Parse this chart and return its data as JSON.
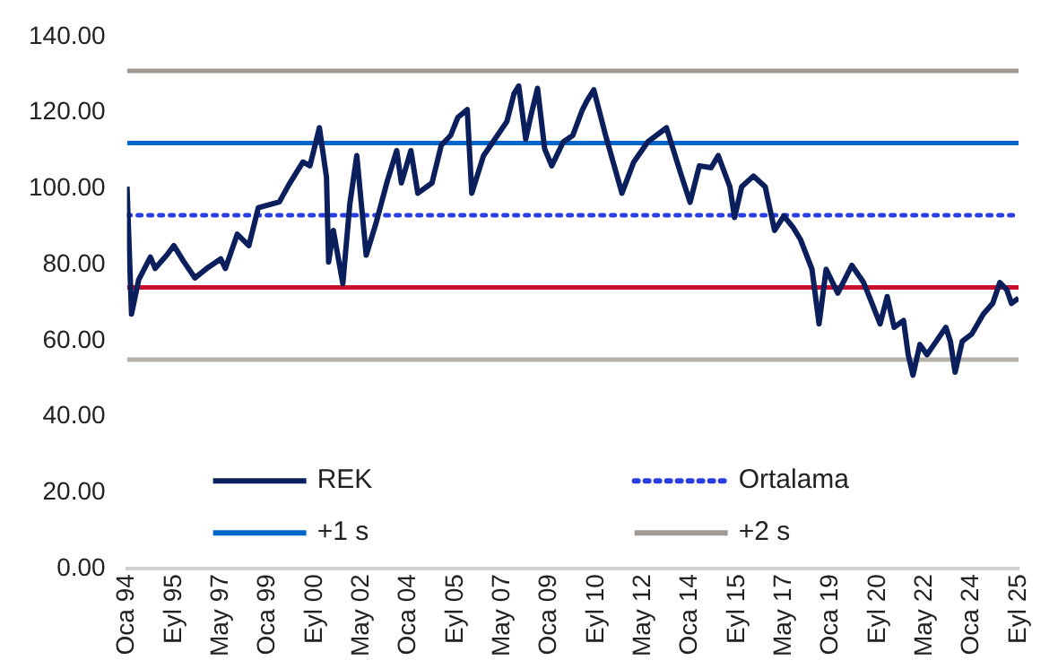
{
  "chart_data": {
    "type": "line",
    "xlim": [
      "1994-01",
      "2025-09"
    ],
    "xticks": [
      {
        "value": "1994-01",
        "label": "Oca 94"
      },
      {
        "value": "1995-09",
        "label": "Eyl 95"
      },
      {
        "value": "1997-05",
        "label": "May 97"
      },
      {
        "value": "1999-01",
        "label": "Oca 99"
      },
      {
        "value": "2000-09",
        "label": "Eyl 00"
      },
      {
        "value": "2002-05",
        "label": "May 02"
      },
      {
        "value": "2004-01",
        "label": "Oca 04"
      },
      {
        "value": "2005-09",
        "label": "Eyl 05"
      },
      {
        "value": "2007-05",
        "label": "May 07"
      },
      {
        "value": "2009-01",
        "label": "Oca 09"
      },
      {
        "value": "2010-09",
        "label": "Eyl 10"
      },
      {
        "value": "2012-05",
        "label": "May 12"
      },
      {
        "value": "2014-01",
        "label": "Oca 14"
      },
      {
        "value": "2015-09",
        "label": "Eyl 15"
      },
      {
        "value": "2017-05",
        "label": "May 17"
      },
      {
        "value": "2019-01",
        "label": "Oca 19"
      },
      {
        "value": "2020-09",
        "label": "Eyl 20"
      },
      {
        "value": "2022-05",
        "label": "May 22"
      },
      {
        "value": "2024-01",
        "label": "Oca 24"
      },
      {
        "value": "2025-09",
        "label": "Eyl 25"
      }
    ],
    "ylim": [
      0,
      140
    ],
    "yticks": [
      {
        "value": 0,
        "label": "0.00"
      },
      {
        "value": 20,
        "label": "20.00"
      },
      {
        "value": 40,
        "label": "40.00"
      },
      {
        "value": 60,
        "label": "60.00"
      },
      {
        "value": 80,
        "label": "80.00"
      },
      {
        "value": 100,
        "label": "100.00"
      },
      {
        "value": 120,
        "label": "120.00"
      },
      {
        "value": 140,
        "label": "140.00"
      }
    ],
    "grid": false,
    "legend": "bottom left",
    "marker": "none",
    "series": [
      {
        "name": "REK",
        "color": "#0a1f5c",
        "line_style": "solid",
        "x": [
          "1994-01",
          "1994-03",
          "1994-06",
          "1994-11",
          "1995-01",
          "1995-06",
          "1995-09",
          "1996-01",
          "1996-06",
          "1996-11",
          "1997-05",
          "1997-07",
          "1997-12",
          "1998-05",
          "1998-09",
          "1999-06",
          "1999-10",
          "2000-04",
          "2000-07",
          "2000-11",
          "2001-02",
          "2001-03",
          "2001-05",
          "2001-09",
          "2001-12",
          "2002-03",
          "2002-07",
          "2002-11",
          "2003-04",
          "2003-08",
          "2003-10",
          "2004-02",
          "2004-05",
          "2004-11",
          "2005-03",
          "2005-07",
          "2005-10",
          "2006-02",
          "2006-04",
          "2006-09",
          "2007-01",
          "2007-07",
          "2007-10",
          "2007-12",
          "2008-03",
          "2008-05",
          "2008-08",
          "2008-11",
          "2009-02",
          "2009-07",
          "2009-11",
          "2010-03",
          "2010-05",
          "2010-08",
          "2011-01",
          "2011-08",
          "2012-01",
          "2012-07",
          "2013-03",
          "2013-09",
          "2014-01",
          "2014-05",
          "2014-10",
          "2015-01",
          "2015-06",
          "2015-08",
          "2015-11",
          "2016-04",
          "2016-09",
          "2017-01",
          "2017-05",
          "2017-09",
          "2017-12",
          "2018-05",
          "2018-08",
          "2018-11",
          "2019-04",
          "2019-10",
          "2020-03",
          "2020-06",
          "2020-10",
          "2021-01",
          "2021-04",
          "2021-08",
          "2021-10",
          "2021-12",
          "2022-03",
          "2022-06",
          "2022-09",
          "2023-02",
          "2023-04",
          "2023-06",
          "2023-09",
          "2024-01",
          "2024-06",
          "2024-10",
          "2025-01",
          "2025-04",
          "2025-06",
          "2025-09"
        ],
        "values": [
          100.5,
          67,
          76,
          82,
          79,
          82.5,
          85,
          81,
          76.5,
          79,
          81.5,
          79,
          88,
          85,
          95,
          96.5,
          101,
          107,
          106,
          116,
          103,
          80.7,
          89,
          75,
          96,
          108.7,
          82.5,
          90.6,
          102,
          110,
          101.5,
          110,
          98.8,
          101.5,
          111.4,
          114,
          118.7,
          120.8,
          98.8,
          108.7,
          112.3,
          117.7,
          125,
          127,
          113,
          118.7,
          126.4,
          110.5,
          106,
          112.3,
          114,
          120.5,
          123,
          126,
          114,
          98.8,
          107,
          112.3,
          116,
          104,
          96.4,
          106,
          105.5,
          108.7,
          100.5,
          92.4,
          100.5,
          103.3,
          100.5,
          89,
          92.8,
          89.7,
          86.7,
          78.8,
          64.4,
          78.8,
          72.5,
          79.8,
          75.3,
          70.7,
          64.4,
          71.6,
          63.5,
          65.3,
          56.3,
          50.9,
          59,
          56.3,
          59,
          63.5,
          59.8,
          51.7,
          59.8,
          61.7,
          67,
          69.8,
          75.3,
          73.4,
          69.8,
          71.2
        ]
      },
      {
        "name": "Ortalama",
        "color": "#2b3fe0",
        "line_style": "dotted",
        "x": [
          "1994-01",
          "2025-09"
        ],
        "values": [
          93,
          93
        ]
      },
      {
        "name": "+1 s",
        "color": "#0066cc",
        "line_style": "solid",
        "x": [
          "1994-01",
          "2025-09"
        ],
        "values": [
          112,
          112
        ]
      },
      {
        "name": "+2 s",
        "color": "#a09a92",
        "line_style": "solid",
        "x": [
          "1994-01",
          "2025-09"
        ],
        "values": [
          131,
          131
        ]
      },
      {
        "color": "#c8102e",
        "line_style": "solid",
        "x": [
          "1994-01",
          "2025-09"
        ],
        "values": [
          74,
          74
        ]
      },
      {
        "color": "#b5b0aa",
        "line_style": "solid",
        "x": [
          "1994-01",
          "2025-09"
        ],
        "values": [
          55,
          55
        ]
      }
    ]
  }
}
